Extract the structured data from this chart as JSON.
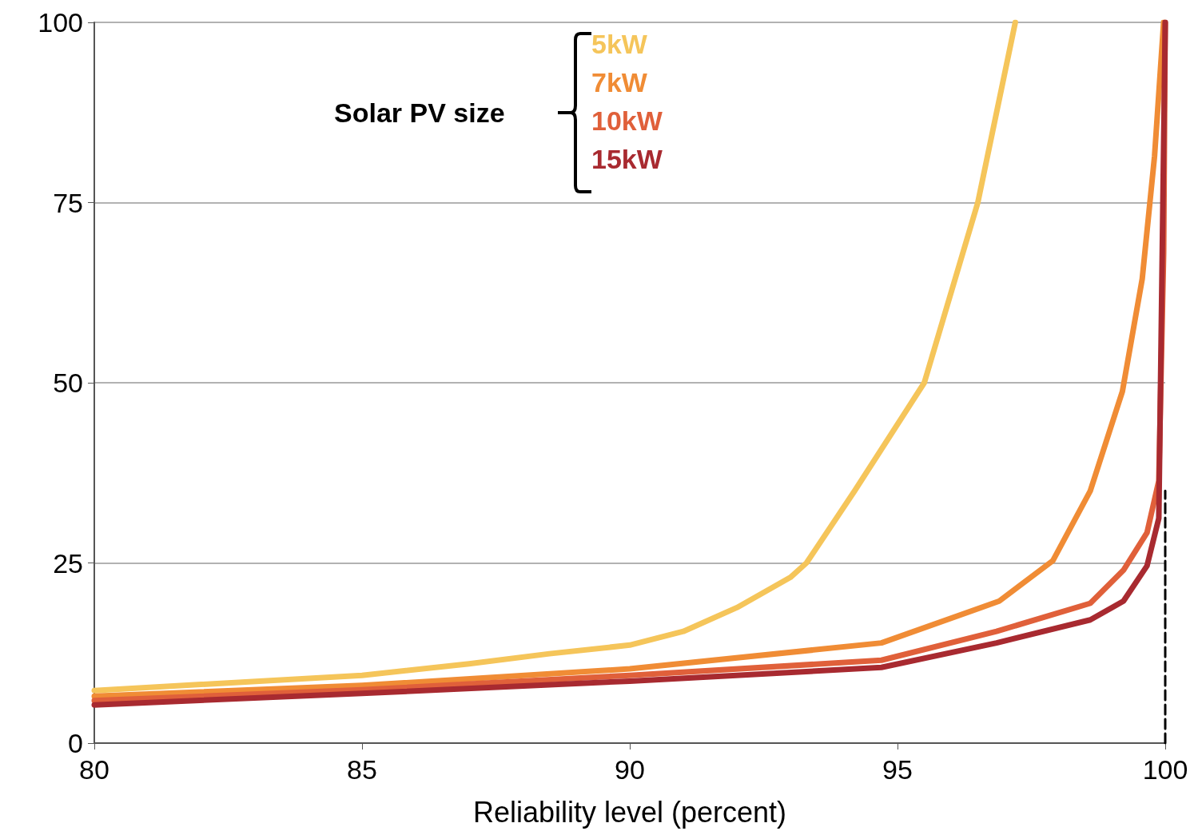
{
  "chart_data": {
    "type": "line",
    "xlabel": "Reliability level (percent)",
    "legend_title": "Solar PV size",
    "xlim": [
      80,
      100
    ],
    "xticks": [
      80,
      85,
      90,
      95,
      100
    ],
    "ylim": [
      0,
      100
    ],
    "yticks": [
      0,
      25,
      50,
      75,
      100
    ],
    "grid": "y",
    "legend": "top",
    "marker": "none",
    "series": [
      {
        "name": "5kW",
        "color": "#f5c55a",
        "x": [
          80,
          85,
          87,
          88.5,
          90,
          91,
          92,
          93,
          93.3,
          94.2,
          95.5,
          96.5,
          97.2
        ],
        "values": [
          7.3,
          9.4,
          11,
          12.4,
          13.6,
          15.5,
          18.8,
          23,
          25,
          35,
          50,
          75,
          100
        ]
      },
      {
        "name": "7kW",
        "color": "#f08c35",
        "x": [
          80,
          85,
          90,
          94.7,
          96.9,
          97.9,
          98.6,
          99.2,
          99.57,
          99.8,
          99.97
        ],
        "values": [
          6.5,
          8.0,
          10.3,
          13.9,
          19.7,
          25.3,
          35,
          48.8,
          64.4,
          81.4,
          100
        ]
      },
      {
        "name": "10kW",
        "color": "#e0603a",
        "x": [
          80,
          85,
          90,
          94.7,
          96.85,
          98.6,
          99.22,
          99.66,
          99.88,
          99.97,
          100
        ],
        "values": [
          5.9,
          7.4,
          9.4,
          11.5,
          15.5,
          19.4,
          24,
          29.2,
          36.4,
          68,
          100
        ]
      },
      {
        "name": "15kW",
        "color": "#a82a30",
        "x": [
          80,
          85,
          90,
          94.7,
          96.85,
          98.6,
          99.22,
          99.66,
          99.88,
          100
        ],
        "values": [
          5.3,
          6.9,
          8.6,
          10.5,
          13.9,
          17.1,
          19.7,
          24.6,
          31.2,
          100
        ]
      },
      {
        "color": "#000000",
        "line_style": "dashed",
        "x": [
          100,
          100
        ],
        "values": [
          0,
          35
        ]
      }
    ]
  }
}
